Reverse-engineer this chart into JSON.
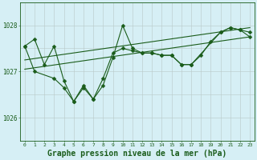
{
  "background_color": "#d6eff5",
  "grid_color_v": "#b8c8c8",
  "grid_color_h": "#b8c8c8",
  "line_color": "#1a5c1a",
  "xlabel": "Graphe pression niveau de la mer (hPa)",
  "xlabel_fontsize": 7,
  "xmin": 0,
  "xmax": 23,
  "yticks": [
    1026,
    1027,
    1028
  ],
  "ylim": [
    1025.5,
    1028.5
  ],
  "series1_x": [
    0,
    1,
    2,
    3,
    4,
    5,
    6,
    7,
    8,
    9,
    10,
    11,
    12,
    13,
    14,
    15,
    16,
    17,
    18,
    19,
    20,
    21,
    22,
    23
  ],
  "series1_y": [
    1027.55,
    1027.7,
    1027.15,
    1027.55,
    1026.8,
    1026.35,
    1026.7,
    1026.4,
    1026.85,
    1027.4,
    1027.5,
    1027.45,
    1027.4,
    1027.4,
    1027.35,
    1027.35,
    1027.15,
    1027.15,
    1027.35,
    1027.65,
    1027.85,
    1027.95,
    1027.9,
    1027.85
  ],
  "trend1_x": [
    0,
    23
  ],
  "trend1_y": [
    1027.05,
    1027.75
  ],
  "trend2_x": [
    0,
    23
  ],
  "trend2_y": [
    1027.25,
    1027.95
  ],
  "series2_x": [
    0,
    1,
    3,
    4,
    5,
    6,
    7,
    8,
    9,
    10,
    11,
    12,
    13,
    14,
    15,
    16,
    17,
    20,
    21,
    22,
    23
  ],
  "series2_y": [
    1027.55,
    1027.0,
    1026.85,
    1026.65,
    1026.35,
    1026.65,
    1026.4,
    1026.7,
    1027.3,
    1028.0,
    1027.5,
    1027.4,
    1027.4,
    1027.35,
    1027.35,
    1027.15,
    1027.15,
    1027.85,
    1027.95,
    1027.9,
    1027.75
  ],
  "marker": "D",
  "markersize": 2.5,
  "linewidth": 0.8
}
